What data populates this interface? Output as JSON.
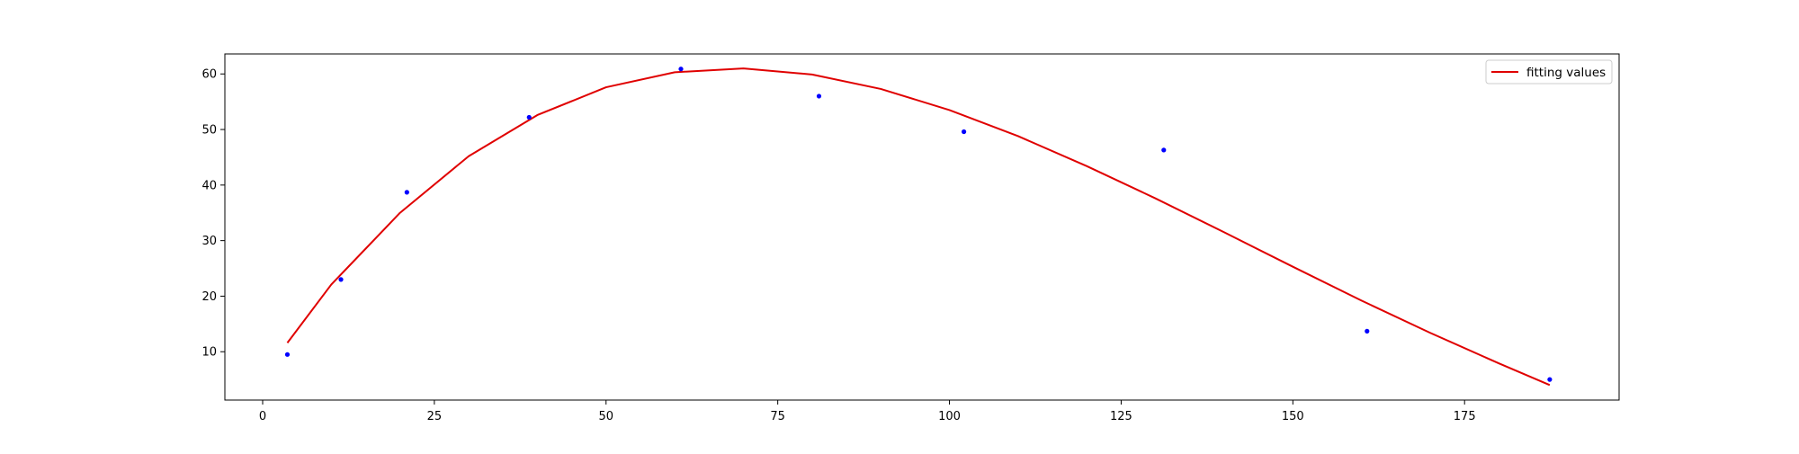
{
  "chart_data": {
    "type": "scatter",
    "title": "",
    "xlabel": "",
    "ylabel": "",
    "xlim": [
      -5.5,
      197.5
    ],
    "ylim": [
      1.3,
      63.6
    ],
    "x_ticks": [
      0,
      25,
      50,
      75,
      100,
      125,
      150,
      175
    ],
    "y_ticks": [
      10,
      20,
      30,
      40,
      50,
      60
    ],
    "x_tick_labels": [
      "0",
      "25",
      "50",
      "75",
      "100",
      "125",
      "150",
      "175"
    ],
    "y_tick_labels": [
      "10",
      "20",
      "30",
      "40",
      "50",
      "60"
    ],
    "grid": false,
    "legend": {
      "position": "top-right",
      "entries": [
        "fitting values"
      ]
    },
    "series": [
      {
        "kind": "scatter",
        "color": "#0000ff",
        "x": [
          3.6,
          11.4,
          21.0,
          38.8,
          60.9,
          81.0,
          102.1,
          131.2,
          160.8,
          187.4
        ],
        "y": [
          9.5,
          23.0,
          38.7,
          52.2,
          60.9,
          56.0,
          49.6,
          46.3,
          13.7,
          5.0
        ]
      },
      {
        "kind": "line",
        "name": "fitting values",
        "color": "#e00000",
        "x": [
          3.6,
          10,
          20,
          30,
          40,
          50,
          60,
          70,
          80,
          90,
          100,
          110,
          120,
          130,
          140,
          150,
          160,
          170,
          180,
          187.4
        ],
        "y": [
          11.6,
          22.1,
          35.0,
          45.2,
          52.6,
          57.6,
          60.3,
          61.0,
          59.9,
          57.3,
          53.5,
          48.8,
          43.4,
          37.6,
          31.5,
          25.3,
          19.2,
          13.4,
          7.9,
          4.0
        ]
      }
    ]
  }
}
